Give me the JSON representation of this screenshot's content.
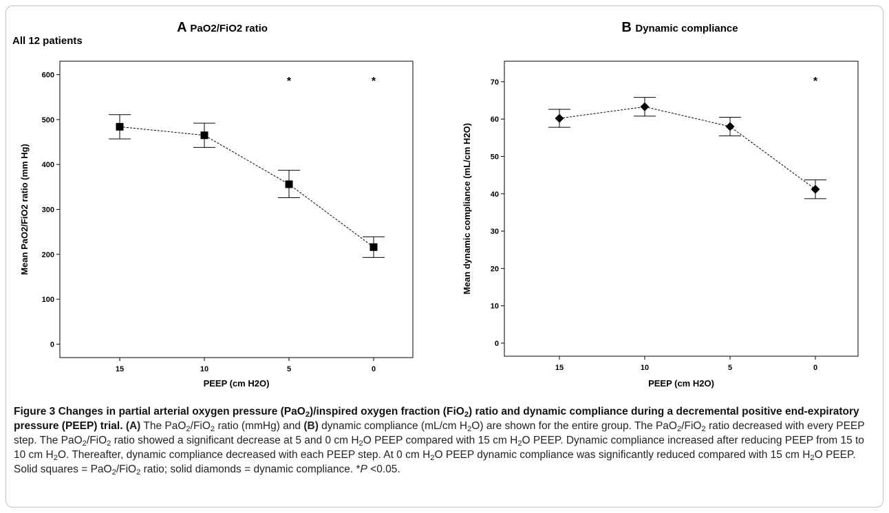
{
  "figure": {
    "group_label": "All 12 patients",
    "caption_title_parts": [
      "Figure 3 Changes in partial arterial oxygen pressure (PaO",
      "2",
      ")/inspired oxygen fraction (FiO",
      "2",
      ") ratio and dynamic compliance during a decremental positive end-expiratory pressure (PEEP) trial."
    ],
    "caption_body": {
      "s1_a": "(A)",
      "s1_b": " The PaO",
      "s1_c": "2",
      "s1_d": "/FiO",
      "s1_e": "2",
      "s1_f": " ratio (mmHg) and ",
      "s1_g": "(B)",
      "s1_h": " dynamic compliance (mL/cm H",
      "s1_i": "2",
      "s1_j": "O) are shown for the entire group. The PaO",
      "s1_k": "2",
      "s1_l": "/FiO",
      "s1_m": "2",
      "s1_n": " ratio decreased with every PEEP step. The PaO",
      "s1_o": "2",
      "s1_p": "/FiO",
      "s1_q": "2",
      "s1_r": " ratio showed a significant decrease at 5 and 0 cm H",
      "s1_s": "2",
      "s1_t": "O PEEP compared with 15 cm H",
      "s1_u": "2",
      "s1_v": "O PEEP. Dynamic compliance increased after reducing PEEP from 15 to 10 cm H",
      "s1_w": "2",
      "s1_x": "O. Thereafter, dynamic compliance decreased with each PEEP step. At 0 cm H",
      "s1_y": "2",
      "s1_z": "O PEEP dynamic compliance was significantly reduced compared with 15 cm H",
      "s2_a": "2",
      "s2_b": "O PEEP. Solid squares = PaO",
      "s2_c": "2",
      "s2_d": "/FiO",
      "s2_e": "2",
      "s2_f": " ratio; solid diamonds = dynamic compliance. *",
      "s2_g": "P",
      "s2_h": " <0.05."
    }
  },
  "chart_data": [
    {
      "type": "scatter",
      "panel_letter": "A",
      "title": "PaO2/FiO2 ratio",
      "xlabel": "PEEP (cm H2O)",
      "ylabel": "Mean PaO2/FiO2 ratio (mm Hg)",
      "categories": [
        "15",
        "10",
        "5",
        "0"
      ],
      "values": [
        484,
        465,
        356,
        216
      ],
      "error_low": [
        457,
        438,
        326,
        193
      ],
      "error_high": [
        511,
        492,
        387,
        239
      ],
      "significant": [
        false,
        false,
        true,
        true
      ],
      "significance_marker": "*",
      "marker": "square",
      "connect": "dashed",
      "ylim": [
        -30,
        630
      ],
      "yticks": [
        0,
        100,
        200,
        300,
        400,
        500,
        600
      ]
    },
    {
      "type": "scatter",
      "panel_letter": "B",
      "title": "Dynamic compliance",
      "xlabel": "PEEP (cm H2O)",
      "ylabel": "Mean dynamic compliance (mL/cm H2O)",
      "categories": [
        "15",
        "10",
        "5",
        "0"
      ],
      "values": [
        60.2,
        63.3,
        58.0,
        41.2
      ],
      "error_low": [
        57.8,
        60.8,
        55.5,
        38.7
      ],
      "error_high": [
        62.6,
        65.8,
        60.5,
        43.7
      ],
      "significant": [
        false,
        false,
        false,
        true
      ],
      "significance_marker": "*",
      "marker": "diamond",
      "connect": "dashed",
      "ylim": [
        -3.5,
        75.5
      ],
      "yticks": [
        0,
        10,
        20,
        30,
        40,
        50,
        60,
        70
      ]
    }
  ]
}
